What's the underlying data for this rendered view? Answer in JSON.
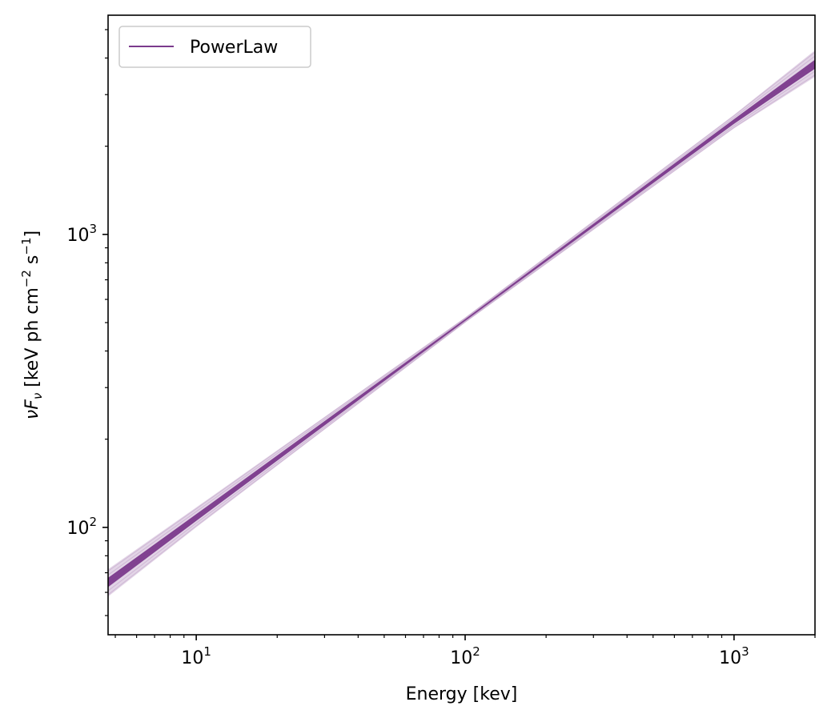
{
  "chart_data": {
    "type": "line",
    "title": "",
    "xlabel": "Energy [kev]",
    "ylabel": "νF_ν [keV ph cm^-2 s^-1]",
    "ylabel_parts": {
      "nu": "ν",
      "F": "F",
      "F_sub": "ν",
      "open": " [keV ph cm",
      "cm_exp": "−2",
      "s": " s",
      "s_exp": "−1",
      "close": "]"
    },
    "x_scale": "log",
    "y_scale": "log",
    "xlim": [
      4.7,
      2000
    ],
    "ylim": [
      43,
      5600
    ],
    "x_ticks": [
      {
        "base": "10",
        "exp": "1",
        "value": 10
      },
      {
        "base": "10",
        "exp": "2",
        "value": 100
      },
      {
        "base": "10",
        "exp": "3",
        "value": 1000
      }
    ],
    "y_ticks": [
      {
        "base": "10",
        "exp": "2",
        "value": 100
      },
      {
        "base": "10",
        "exp": "3",
        "value": 1000
      }
    ],
    "grid": false,
    "legend": {
      "position": "top-left",
      "entries": [
        {
          "name": "PowerLaw",
          "color": "#7B3A8C"
        }
      ]
    },
    "series": [
      {
        "name": "PowerLaw",
        "kind": "posterior-sample-band",
        "color": "#7B3A8C",
        "x": [
          4.7,
          10,
          100,
          1000,
          2000
        ],
        "y": [
          65,
          108,
          510,
          2430,
          3800
        ],
        "y_lower": [
          58,
          100,
          500,
          2300,
          3450
        ],
        "y_upper": [
          72,
          117,
          520,
          2560,
          4250
        ]
      }
    ]
  }
}
